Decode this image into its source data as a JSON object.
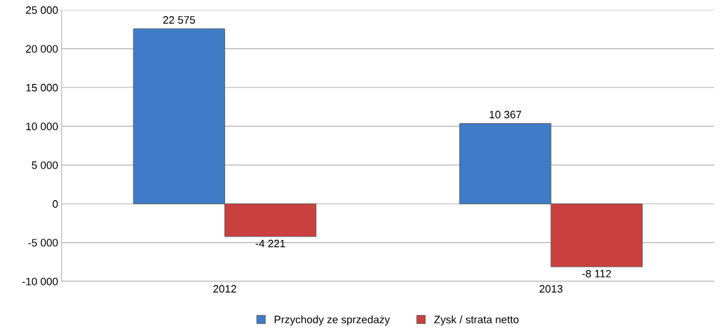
{
  "chart_data": {
    "type": "bar",
    "categories": [
      "2012",
      "2013"
    ],
    "series": [
      {
        "name": "Przychody ze sprzedaży",
        "color": "#3f7bc7",
        "values": [
          22575,
          10367
        ],
        "value_labels": [
          "22 575",
          "10 367"
        ]
      },
      {
        "name": "Zysk / strata netto",
        "color": "#c9403e",
        "values": [
          -4221,
          -8112
        ],
        "value_labels": [
          "-4 221",
          "-8 112"
        ]
      }
    ],
    "ylim": [
      -10000,
      25000
    ],
    "yticks": [
      {
        "value": -10000,
        "label": "-10 000"
      },
      {
        "value": -5000,
        "label": "-5 000"
      },
      0,
      {
        "value": 5000,
        "label": "5 000"
      },
      {
        "value": 10000,
        "label": "10 000"
      },
      {
        "value": 15000,
        "label": "15 000"
      },
      {
        "value": 20000,
        "label": "20 000"
      },
      {
        "value": 25000,
        "label": "25 000"
      }
    ],
    "grid": "y",
    "legend": "bottom"
  }
}
